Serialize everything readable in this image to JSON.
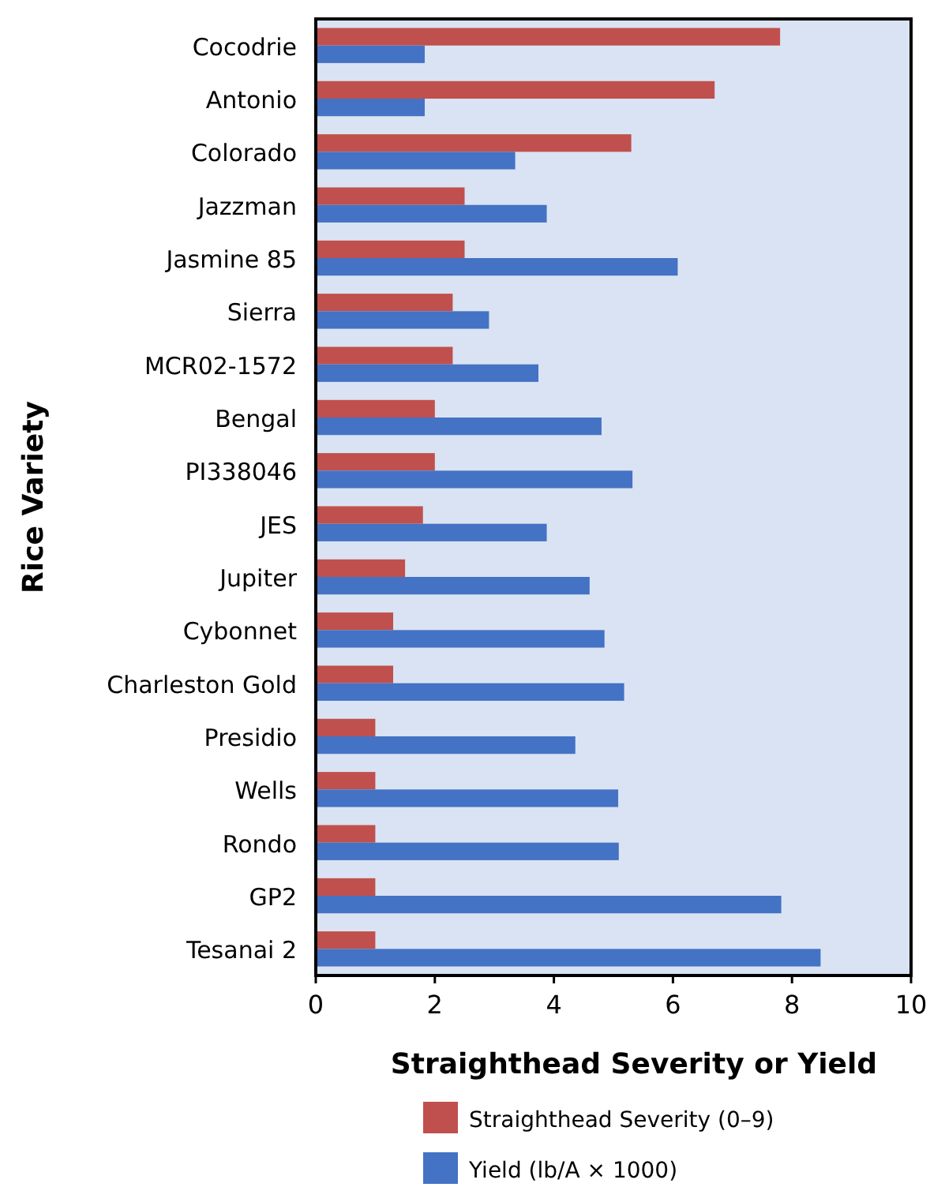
{
  "chart_data": {
    "type": "bar",
    "orientation": "horizontal",
    "xlabel": "Straighthead Severity or Yield",
    "ylabel": "Rice Variety",
    "categories": [
      "Cocodrie",
      "Antonio",
      "Colorado",
      "Jazzman",
      "Jasmine 85",
      "Sierra",
      "MCR02-1572",
      "Bengal",
      "PI338046",
      "JES",
      "Jupiter",
      "Cybonnet",
      "Charleston Gold",
      "Presidio",
      "Wells",
      "Rondo",
      "GP2",
      "Tesanai 2"
    ],
    "series": [
      {
        "name": "Straighthead Severity (0–9)",
        "color": "#c0504d",
        "values": [
          7.8,
          6.7,
          5.3,
          2.5,
          2.5,
          2.3,
          2.3,
          2.0,
          2.0,
          1.8,
          1.5,
          1.3,
          1.3,
          1.0,
          1.0,
          1.0,
          1.0,
          1.0
        ]
      },
      {
        "name": "Yield (lb/A × 1000)",
        "color": "#4472c4",
        "values": [
          1.83,
          1.83,
          3.35,
          3.88,
          6.08,
          2.91,
          3.74,
          4.8,
          5.32,
          3.88,
          4.6,
          4.85,
          5.18,
          4.36,
          5.08,
          5.09,
          7.82,
          8.48
        ]
      }
    ],
    "xlim": [
      0,
      10
    ],
    "xticks": [
      0,
      2,
      4,
      6,
      8,
      10
    ],
    "grid": false,
    "legend": "bottom"
  }
}
